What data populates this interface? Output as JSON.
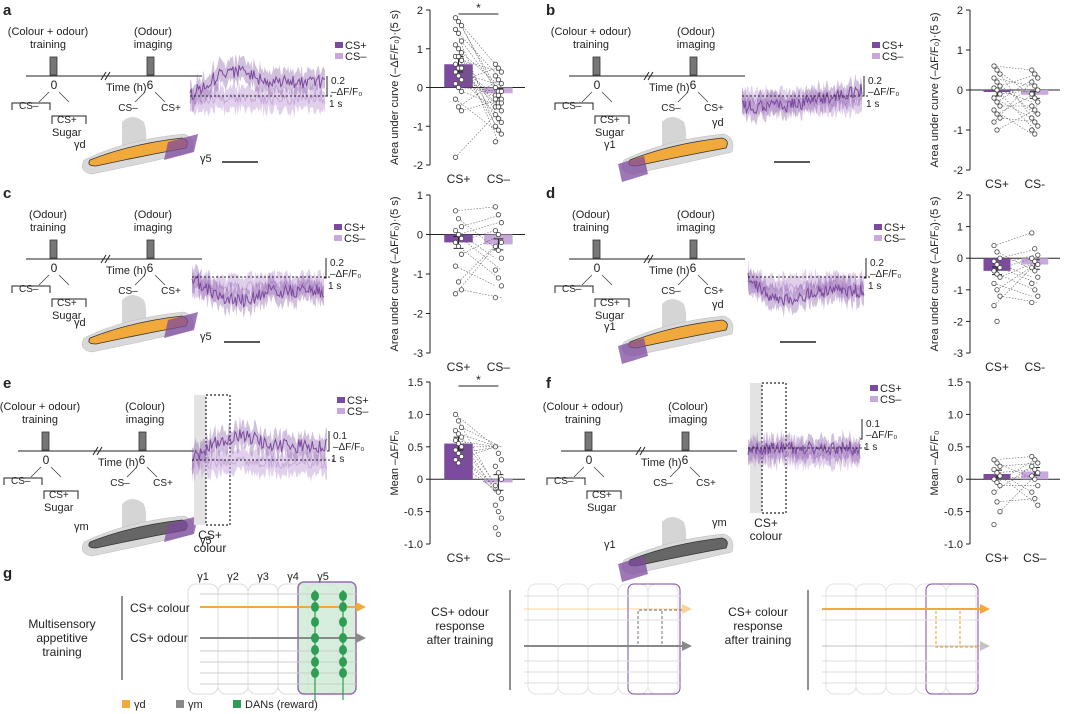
{
  "figure": {
    "colors": {
      "purple_dark": "#7c4a9e",
      "purple_light": "#c8a9db",
      "orange": "#f2a93b",
      "grey": "#888888",
      "green": "#2e9e54",
      "green_fill": "#cfead5"
    },
    "panels": {
      "a": {
        "letter": "a",
        "train": "(Colour + odour)\ntraining",
        "image": "(Odour)\nimaging",
        "gamma_labels": [
          "γd",
          "γ5"
        ],
        "trace_sign": 1
      },
      "b": {
        "letter": "b",
        "train": "(Colour + odour)\ntraining",
        "image": "(Odour)\nimaging",
        "gamma_labels": [
          "γ1",
          "γd"
        ],
        "trace_sign": 0
      },
      "c": {
        "letter": "c",
        "train": "(Odour)\ntraining",
        "image": "(Odour)\nimaging",
        "gamma_labels": [
          "γd",
          "γ5"
        ],
        "trace_sign": -1
      },
      "d": {
        "letter": "d",
        "train": "(Odour)\ntraining",
        "image": "(Odour)\nimaging",
        "gamma_labels": [
          "γ1",
          "γd"
        ],
        "trace_sign": -1
      },
      "e": {
        "letter": "e",
        "train": "(Colour + odour)\ntraining",
        "image": "(Colour)\nimaging",
        "gamma_labels": [
          "γm",
          "γ5"
        ],
        "trace_sign": 1,
        "stim_label": "CS+\ncolour"
      },
      "f": {
        "letter": "f",
        "train": "(Colour + odour)\ntraining",
        "image": "(Colour)\nimaging",
        "gamma_labels": [
          "γ1",
          "γm"
        ],
        "trace_sign": 0,
        "stim_label": "CS+\ncolour"
      }
    },
    "timeline": {
      "zero": "0",
      "six": "6",
      "time_label": "Time (h)",
      "cs_minus": "CS–",
      "cs_plus": "CS+",
      "sugar": "Sugar"
    },
    "trace_legend": {
      "cs_plus": "CS+",
      "cs_minus": "CS–"
    },
    "scalebars": {
      "dff_02": "0.2",
      "dff_01": "0.1",
      "dff_label": "–ΔF/F₀",
      "time_1s": "1 s"
    },
    "g": {
      "letter": "g",
      "left_title": "Multisensory\nappetitive\ntraining",
      "row_colour": "CS+ colour",
      "row_odour": "CS+ odour",
      "compartments": [
        "γ1",
        "γ2",
        "γ3",
        "γ4",
        "γ5"
      ],
      "middle_title": "CS+ odour\nresponse\nafter training",
      "right_title": "CS+ colour\nresponse\nafter training",
      "legend": [
        "γd",
        "γm",
        "DANs (reward)"
      ]
    }
  },
  "chart_data": [
    {
      "panel": "a",
      "type": "bar",
      "ylabel": "Area under curve (–ΔF/F₀)·(5 s)",
      "ylim": [
        -2,
        2
      ],
      "yticks": [
        -2,
        -1,
        0,
        1,
        2
      ],
      "categories": [
        "CS+",
        "CS–"
      ],
      "values": [
        0.6,
        -0.15
      ],
      "errors": [
        0.2,
        0.12
      ],
      "significance": "*",
      "points_cs_plus": [
        1.8,
        1.7,
        1.6,
        1.5,
        1.4,
        1.2,
        1.1,
        1.0,
        0.9,
        0.8,
        0.8,
        0.7,
        0.6,
        0.5,
        0.5,
        0.4,
        0.3,
        0.2,
        0.1,
        0.0,
        -0.1,
        -0.3,
        -0.5,
        -0.6,
        -1.8
      ],
      "points_cs_minus": [
        0.6,
        0.5,
        0.4,
        0.3,
        0.2,
        0.1,
        0.0,
        -0.1,
        -0.1,
        -0.2,
        -0.2,
        -0.3,
        -0.3,
        -0.4,
        -0.4,
        -0.5,
        -0.5,
        -0.6,
        -0.7,
        -0.8,
        -0.9,
        -1.0,
        -1.1,
        -1.2,
        -1.4
      ]
    },
    {
      "panel": "b",
      "type": "bar",
      "ylabel": "Area under curve (–ΔF/F₀)·(5 s)",
      "ylim": [
        -2,
        2
      ],
      "yticks": [
        -2,
        -1,
        0,
        1,
        2
      ],
      "categories": [
        "CS+",
        "CS-"
      ],
      "values": [
        -0.05,
        -0.12
      ],
      "errors": [
        0.1,
        0.09
      ],
      "significance": "",
      "points_cs_plus": [
        0.6,
        0.5,
        0.4,
        0.3,
        0.2,
        0.1,
        0.05,
        0.0,
        -0.1,
        -0.2,
        -0.3,
        -0.4,
        -0.5,
        -0.6,
        -0.7,
        -0.8,
        -1.0
      ],
      "points_cs_minus": [
        0.5,
        0.4,
        0.3,
        0.2,
        0.1,
        0.0,
        -0.1,
        -0.2,
        -0.3,
        -0.4,
        -0.5,
        -0.6,
        -0.7,
        -0.8,
        -0.9,
        -1.0,
        -1.1
      ]
    },
    {
      "panel": "c",
      "type": "bar",
      "ylabel": "Area under curve (–ΔF/F₀)·(5 s)",
      "ylim": [
        -3,
        1
      ],
      "yticks": [
        -3,
        -2,
        -1,
        0,
        1
      ],
      "categories": [
        "CS+",
        "CS–"
      ],
      "values": [
        -0.2,
        -0.25
      ],
      "errors": [
        0.15,
        0.14
      ],
      "significance": "",
      "points_cs_plus": [
        0.6,
        0.4,
        0.2,
        0.1,
        0.0,
        -0.1,
        -0.2,
        -0.3,
        -0.5,
        -0.8,
        -1.2,
        -1.4,
        -1.5
      ],
      "points_cs_minus": [
        0.7,
        0.5,
        0.3,
        0.1,
        0.0,
        -0.2,
        -0.3,
        -0.4,
        -0.6,
        -0.9,
        -1.1,
        -1.3,
        -1.6
      ]
    },
    {
      "panel": "d",
      "type": "bar",
      "ylabel": "Area under curve (–ΔF/F₀)·(5 s)",
      "ylim": [
        -3,
        2
      ],
      "yticks": [
        -3,
        -2,
        -1,
        0,
        1,
        2
      ],
      "categories": [
        "CS+",
        "CS-"
      ],
      "values": [
        -0.4,
        -0.2
      ],
      "errors": [
        0.12,
        0.15
      ],
      "significance": "",
      "points_cs_plus": [
        0.4,
        0.2,
        0.0,
        -0.1,
        -0.2,
        -0.3,
        -0.4,
        -0.5,
        -0.6,
        -0.8,
        -1.0,
        -1.2,
        -1.5,
        -2.0
      ],
      "points_cs_minus": [
        0.8,
        0.3,
        0.1,
        0.0,
        -0.1,
        -0.2,
        -0.3,
        -0.4,
        -0.6,
        -0.8,
        -1.0,
        -1.2,
        -1.4
      ]
    },
    {
      "panel": "e",
      "type": "bar",
      "ylabel": "Mean –ΔF/F₀",
      "ylim": [
        -1,
        1.5
      ],
      "yticks": [
        -1.0,
        -0.5,
        0,
        0.5,
        1.0,
        1.5
      ],
      "categories": [
        "CS+",
        "CS–"
      ],
      "values": [
        0.55,
        -0.05
      ],
      "errors": [
        0.1,
        0.12
      ],
      "significance": "*",
      "points_cs_plus": [
        1.0,
        0.9,
        0.8,
        0.75,
        0.7,
        0.65,
        0.6,
        0.55,
        0.5,
        0.45,
        0.4,
        0.35,
        0.3,
        0.25
      ],
      "points_cs_minus": [
        0.5,
        0.4,
        0.3,
        0.2,
        0.1,
        0.0,
        -0.1,
        -0.2,
        -0.3,
        -0.4,
        -0.5,
        -0.6,
        -0.75,
        -0.85
      ]
    },
    {
      "panel": "f",
      "type": "bar",
      "ylabel": "Mean –ΔF/F₀",
      "ylim": [
        -1,
        1.5
      ],
      "yticks": [
        -1.0,
        -0.5,
        0,
        0.5,
        1.0,
        1.5
      ],
      "categories": [
        "CS+",
        "CS–"
      ],
      "values": [
        0.08,
        0.12
      ],
      "errors": [
        0.06,
        0.06
      ],
      "significance": "",
      "points_cs_plus": [
        0.3,
        0.25,
        0.2,
        0.15,
        0.1,
        0.05,
        0.0,
        -0.05,
        -0.1,
        -0.2,
        -0.35,
        -0.5,
        -0.7
      ],
      "points_cs_minus": [
        0.35,
        0.3,
        0.25,
        0.2,
        0.15,
        0.1,
        0.05,
        0.0,
        -0.1,
        -0.2,
        -0.3,
        -0.4
      ]
    }
  ]
}
